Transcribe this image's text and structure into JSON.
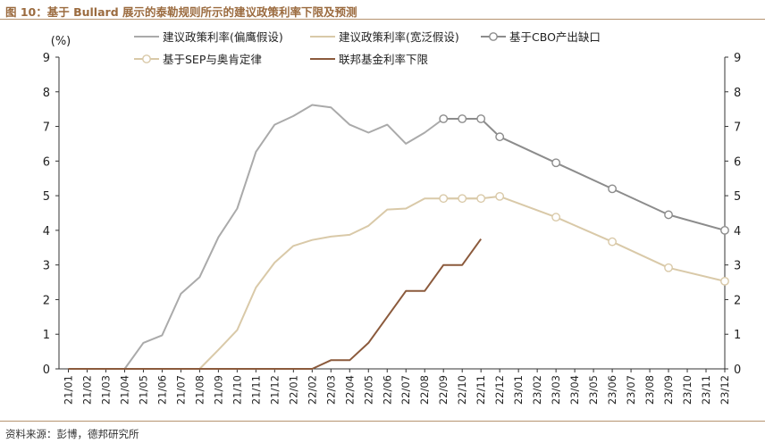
{
  "figure": {
    "title": "图 10：基于 Bullard 展示的泰勒规则所示的建议政策利率下限及预测",
    "source": "资料来源：彭博，德邦研究所"
  },
  "colors": {
    "accent": "#9b6b3f",
    "biased": "#aaaaaa",
    "loose": "#d9c9a8",
    "cbo": "#8c8c8c",
    "sep": "#d9c9a8",
    "fed": "#8b5a3c"
  },
  "chart_data": {
    "type": "line",
    "unit_label": "(%)",
    "ylim": [
      0,
      9
    ],
    "yticks": [
      0,
      1,
      2,
      3,
      4,
      5,
      6,
      7,
      8,
      9
    ],
    "grid": false,
    "legend_position": "top",
    "categories": [
      "21/01",
      "21/02",
      "21/03",
      "21/04",
      "21/05",
      "21/06",
      "21/07",
      "21/08",
      "21/09",
      "21/10",
      "21/11",
      "21/12",
      "22/01",
      "22/02",
      "22/03",
      "22/04",
      "22/05",
      "22/06",
      "22/07",
      "22/08",
      "22/09",
      "22/10",
      "22/11",
      "22/12",
      "23/01",
      "23/02",
      "23/03",
      "23/04",
      "23/05",
      "23/06",
      "23/07",
      "23/08",
      "23/09",
      "23/10",
      "23/11",
      "23/12"
    ],
    "series": [
      {
        "name": "建议政策利率(偏鹰假设)",
        "color": "#aaaaaa",
        "marker": false,
        "values": [
          0,
          0,
          0,
          0,
          0.75,
          0.97,
          2.17,
          2.65,
          3.8,
          4.63,
          6.27,
          7.05,
          7.3,
          7.62,
          7.55,
          7.05,
          6.82,
          7.05,
          6.5,
          6.82,
          7.22,
          7.22,
          7.22,
          null,
          null,
          null,
          null,
          null,
          null,
          null,
          null,
          null,
          null,
          null,
          null,
          null
        ]
      },
      {
        "name": "建议政策利率(宽泛假设)",
        "color": "#d9c9a8",
        "marker": false,
        "values": [
          0,
          0,
          0,
          0,
          0,
          0,
          0,
          0,
          0.55,
          1.12,
          2.35,
          3.07,
          3.55,
          3.72,
          3.82,
          3.87,
          4.13,
          4.6,
          4.63,
          4.92,
          4.92,
          4.92,
          4.92,
          null,
          null,
          null,
          null,
          null,
          null,
          null,
          null,
          null,
          null,
          null,
          null,
          null
        ]
      },
      {
        "name": "基于CBO产出缺口",
        "color": "#8c8c8c",
        "marker": true,
        "values": [
          null,
          null,
          null,
          null,
          null,
          null,
          null,
          null,
          null,
          null,
          null,
          null,
          null,
          null,
          null,
          null,
          null,
          null,
          null,
          null,
          7.22,
          7.22,
          7.22,
          6.7,
          null,
          null,
          5.95,
          null,
          null,
          5.2,
          null,
          null,
          4.45,
          null,
          null,
          4.0
        ]
      },
      {
        "name": "基于SEP与奥肯定律",
        "color": "#d9c9a8",
        "marker": true,
        "values": [
          null,
          null,
          null,
          null,
          null,
          null,
          null,
          null,
          null,
          null,
          null,
          null,
          null,
          null,
          null,
          null,
          null,
          null,
          null,
          null,
          4.92,
          4.92,
          4.92,
          4.98,
          null,
          null,
          4.38,
          null,
          null,
          3.67,
          null,
          null,
          2.92,
          null,
          null,
          2.53
        ]
      },
      {
        "name": "联邦基金利率下限",
        "color": "#8b5a3c",
        "marker": false,
        "values": [
          0,
          0,
          0,
          0,
          0,
          0,
          0,
          0,
          0,
          0,
          0,
          0,
          0,
          0,
          0.25,
          0.25,
          0.75,
          1.5,
          2.25,
          2.25,
          3.0,
          3.0,
          3.75,
          null,
          null,
          null,
          null,
          null,
          null,
          null,
          null,
          null,
          null,
          null,
          null,
          null
        ]
      }
    ]
  }
}
